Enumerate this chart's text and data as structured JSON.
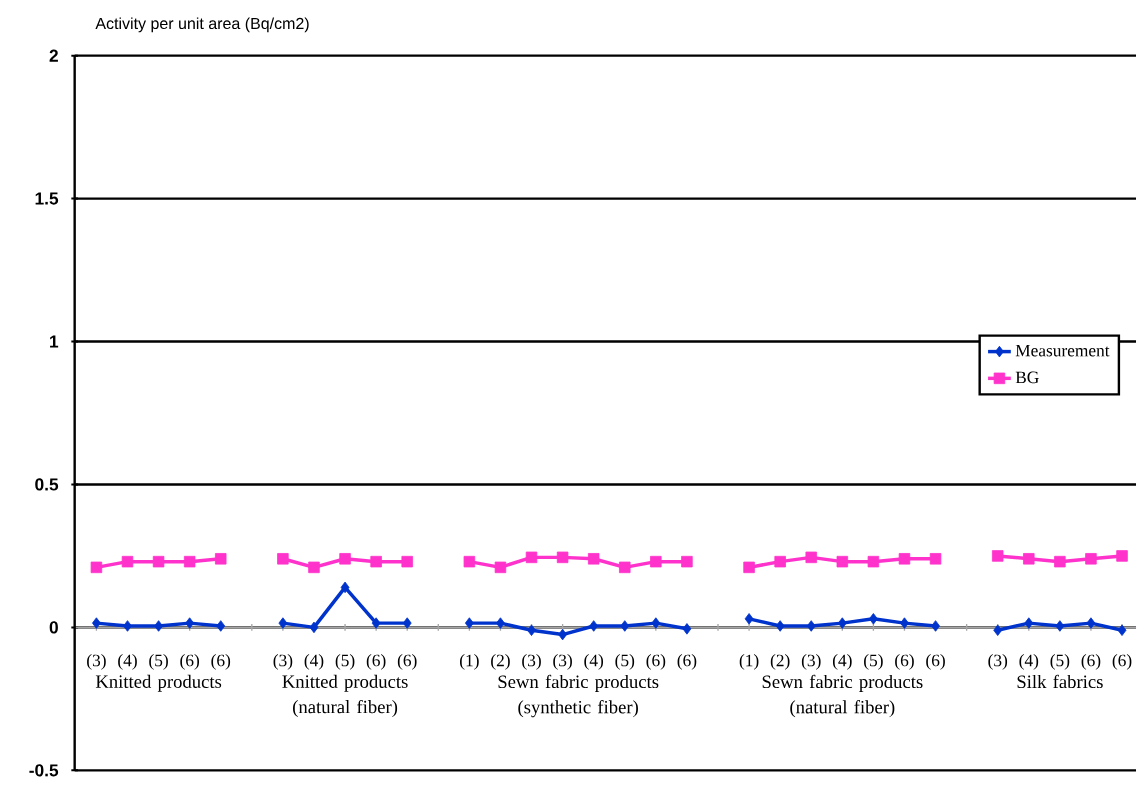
{
  "chart_data": {
    "type": "line",
    "ylabel": "Activity per unit area (Bq/cm2)",
    "categories": [
      "(3)",
      "(4)",
      "(5)",
      "(6)",
      "(6)",
      null,
      "(3)",
      "(4)",
      "(5)",
      "(6)",
      "(6)",
      null,
      "(1)",
      "(2)",
      "(3)",
      "(3)",
      "(4)",
      "(5)",
      "(6)",
      "(6)",
      null,
      "(1)",
      "(2)",
      "(3)",
      "(4)",
      "(5)",
      "(6)",
      "(6)",
      null,
      "(3)",
      "(4)",
      "(5)",
      "(6)",
      "(6)"
    ],
    "series": [
      {
        "name": "Measurement",
        "color": "#0033cc",
        "marker": "diamond",
        "values": [
          0.015,
          0.005,
          0.005,
          0.015,
          0.005,
          null,
          0.015,
          0,
          0.14,
          0.015,
          0.015,
          null,
          0.015,
          0.015,
          -0.01,
          -0.025,
          0.005,
          0.005,
          0.015,
          -0.005,
          null,
          0.03,
          0.005,
          0.005,
          0.015,
          0.03,
          0.015,
          0.005,
          null,
          -0.01,
          0.015,
          0.005,
          0.015,
          -0.01
        ]
      },
      {
        "name": "BG",
        "color": "#ff33cc",
        "marker": "square",
        "values": [
          0.21,
          0.23,
          0.23,
          0.23,
          0.24,
          null,
          0.24,
          0.21,
          0.24,
          0.23,
          0.23,
          null,
          0.23,
          0.21,
          0.245,
          0.245,
          0.24,
          0.21,
          0.23,
          0.23,
          null,
          0.21,
          0.23,
          0.245,
          0.23,
          0.23,
          0.24,
          0.24,
          null,
          0.25,
          0.24,
          0.23,
          0.24,
          0.25
        ]
      }
    ],
    "annotations": [
      "Knitted products",
      "Knitted products (natural fiber)",
      "Sewn fabric products (synthetic fiber)",
      "Sewn fabric products (natural fiber)",
      "Silk fabrics"
    ],
    "ylim": [
      -0.5,
      2
    ],
    "yticks": [
      -0.5,
      0,
      0.5,
      1,
      1.5,
      2
    ],
    "grid": "y",
    "legend": "right"
  }
}
